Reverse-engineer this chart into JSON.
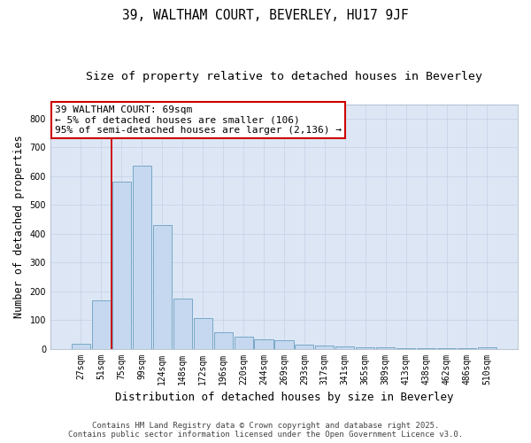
{
  "title1": "39, WALTHAM COURT, BEVERLEY, HU17 9JF",
  "title2": "Size of property relative to detached houses in Beverley",
  "xlabel": "Distribution of detached houses by size in Beverley",
  "ylabel": "Number of detached properties",
  "categories": [
    "27sqm",
    "51sqm",
    "75sqm",
    "99sqm",
    "124sqm",
    "148sqm",
    "172sqm",
    "196sqm",
    "220sqm",
    "244sqm",
    "269sqm",
    "293sqm",
    "317sqm",
    "341sqm",
    "365sqm",
    "389sqm",
    "413sqm",
    "438sqm",
    "462sqm",
    "486sqm",
    "510sqm"
  ],
  "values": [
    18,
    168,
    580,
    637,
    430,
    173,
    105,
    57,
    42,
    33,
    30,
    13,
    10,
    8,
    6,
    4,
    3,
    2,
    1,
    1,
    5
  ],
  "bar_color": "#c5d8ef",
  "bar_edge_color": "#6a9fc0",
  "red_line_x": 1.5,
  "annotation_line1": "39 WALTHAM COURT: 69sqm",
  "annotation_line2": "← 5% of detached houses are smaller (106)",
  "annotation_line3": "95% of semi-detached houses are larger (2,136) →",
  "annotation_box_color": "#ffffff",
  "annotation_box_edge": "#cc0000",
  "ylim": [
    0,
    850
  ],
  "yticks": [
    0,
    100,
    200,
    300,
    400,
    500,
    600,
    700,
    800
  ],
  "grid_color": "#c8d4e8",
  "plot_bg_color": "#dce6f5",
  "fig_bg_color": "#ffffff",
  "footer1": "Contains HM Land Registry data © Crown copyright and database right 2025.",
  "footer2": "Contains public sector information licensed under the Open Government Licence v3.0.",
  "title1_fontsize": 10.5,
  "title2_fontsize": 9.5,
  "xlabel_fontsize": 9,
  "ylabel_fontsize": 8.5,
  "tick_fontsize": 7,
  "annotation_fontsize": 8,
  "footer_fontsize": 6.5
}
